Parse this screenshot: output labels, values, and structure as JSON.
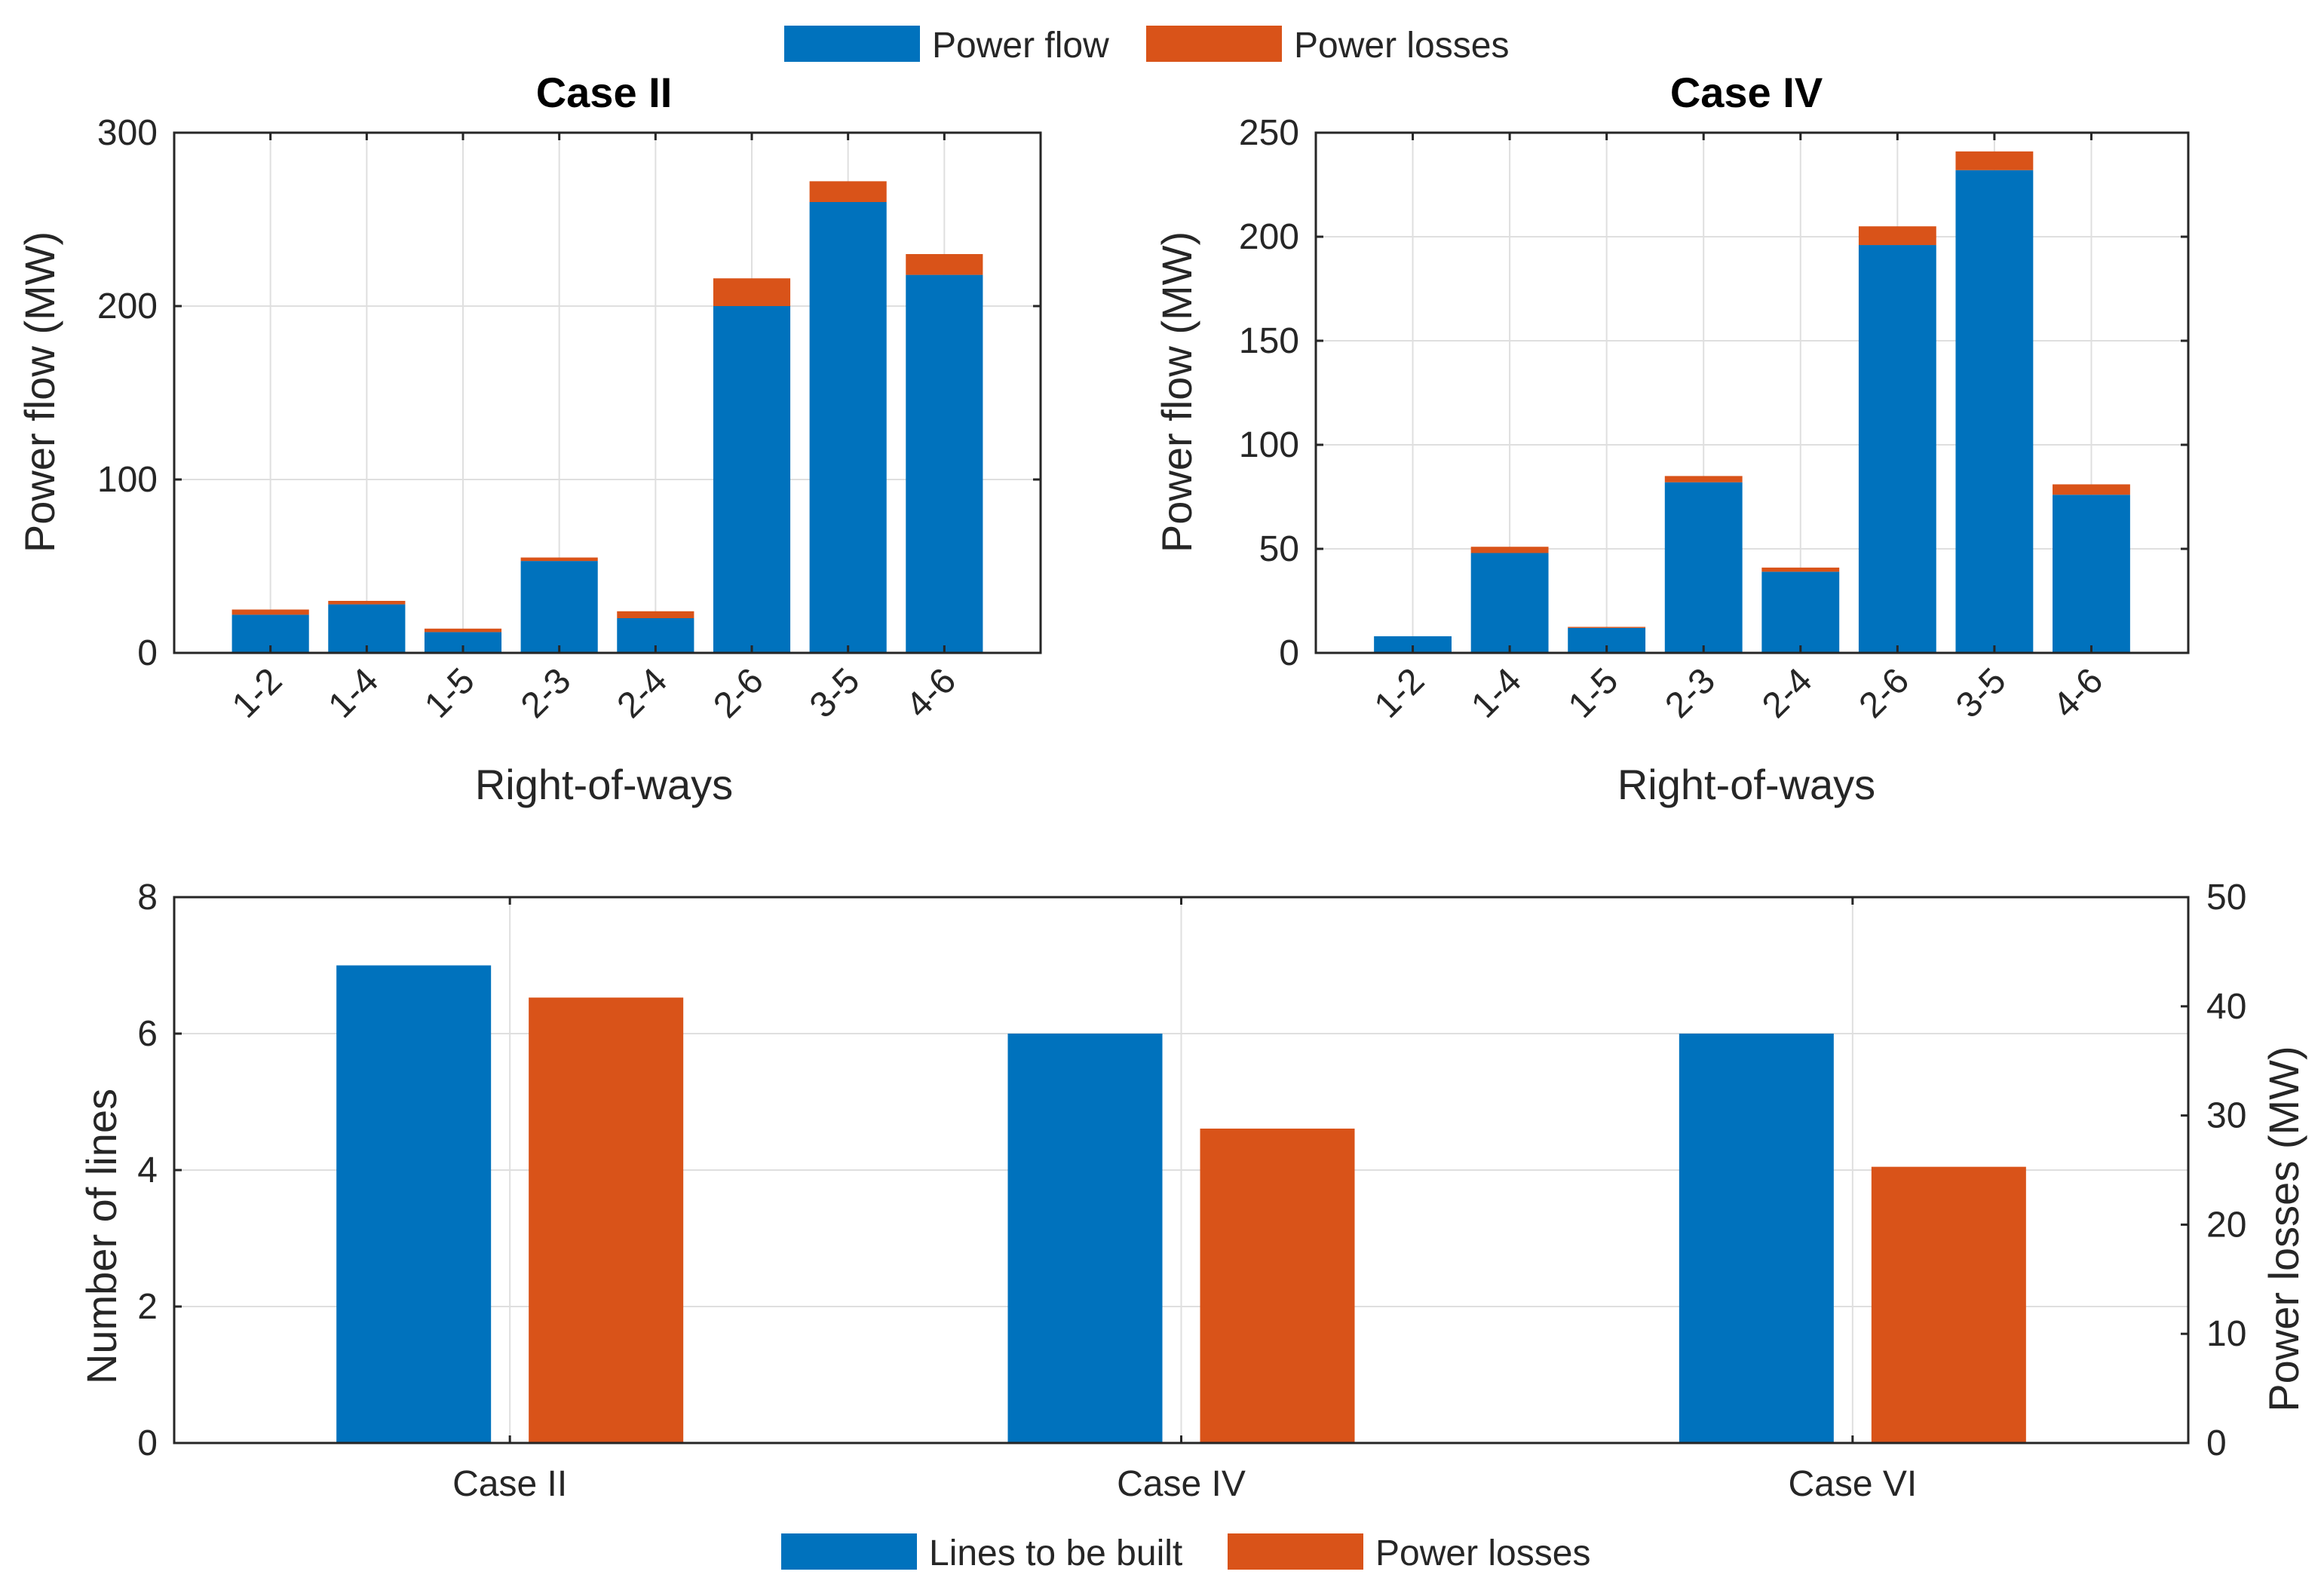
{
  "legend_top": {
    "items": [
      {
        "label": "Power flow",
        "color": "#0072BD"
      },
      {
        "label": "Power losses",
        "color": "#D95319"
      }
    ]
  },
  "legend_bottom": {
    "items": [
      {
        "label": "Lines to be built",
        "color": "#0072BD"
      },
      {
        "label": "Power losses",
        "color": "#D95319"
      }
    ]
  },
  "chart_data": [
    {
      "type": "bar",
      "stacked": true,
      "title": "Case II",
      "xlabel": "Right-of-ways",
      "ylabel": "Power flow (MW)",
      "ylim": [
        0,
        300
      ],
      "yticks": [
        0,
        100,
        200,
        300
      ],
      "grid": true,
      "categories": [
        "1-2",
        "1-4",
        "1-5",
        "2-3",
        "2-4",
        "2-6",
        "3-5",
        "4-6"
      ],
      "series": [
        {
          "name": "Power flow",
          "color": "#0072BD",
          "values": [
            22,
            28,
            12,
            53,
            20,
            200,
            260,
            218
          ]
        },
        {
          "name": "Power losses",
          "color": "#D95319",
          "values": [
            3,
            2,
            2,
            2,
            4,
            16,
            12,
            12
          ]
        }
      ]
    },
    {
      "type": "bar",
      "stacked": true,
      "title": "Case IV",
      "xlabel": "Right-of-ways",
      "ylabel": "Power flow (MW)",
      "ylim": [
        0,
        250
      ],
      "yticks": [
        0,
        50,
        100,
        150,
        200,
        250
      ],
      "grid": true,
      "categories": [
        "1-2",
        "1-4",
        "1-5",
        "2-3",
        "2-4",
        "2-6",
        "3-5",
        "4-6"
      ],
      "series": [
        {
          "name": "Power flow",
          "color": "#0072BD",
          "values": [
            8,
            48,
            12,
            82,
            39,
            196,
            232,
            76
          ]
        },
        {
          "name": "Power losses",
          "color": "#D95319",
          "values": [
            0,
            3,
            0.5,
            3,
            2,
            9,
            9,
            5
          ]
        }
      ]
    },
    {
      "type": "bar",
      "stacked": false,
      "title": "",
      "xlabel": "",
      "ylabel": "Number of lines",
      "ylabel_right": "Power losses (MW)",
      "ylim": [
        0,
        8
      ],
      "yticks": [
        0,
        2,
        4,
        6,
        8
      ],
      "ylim_right": [
        0,
        50
      ],
      "yticks_right": [
        0,
        10,
        20,
        30,
        40,
        50
      ],
      "grid": true,
      "categories": [
        "Case II",
        "Case IV",
        "Case VI"
      ],
      "series": [
        {
          "name": "Lines to be built",
          "axis": "left",
          "color": "#0072BD",
          "values": [
            7,
            6,
            6
          ]
        },
        {
          "name": "Power losses",
          "axis": "right",
          "color": "#D95319",
          "values": [
            40.8,
            28.8,
            25.3
          ]
        }
      ]
    }
  ]
}
